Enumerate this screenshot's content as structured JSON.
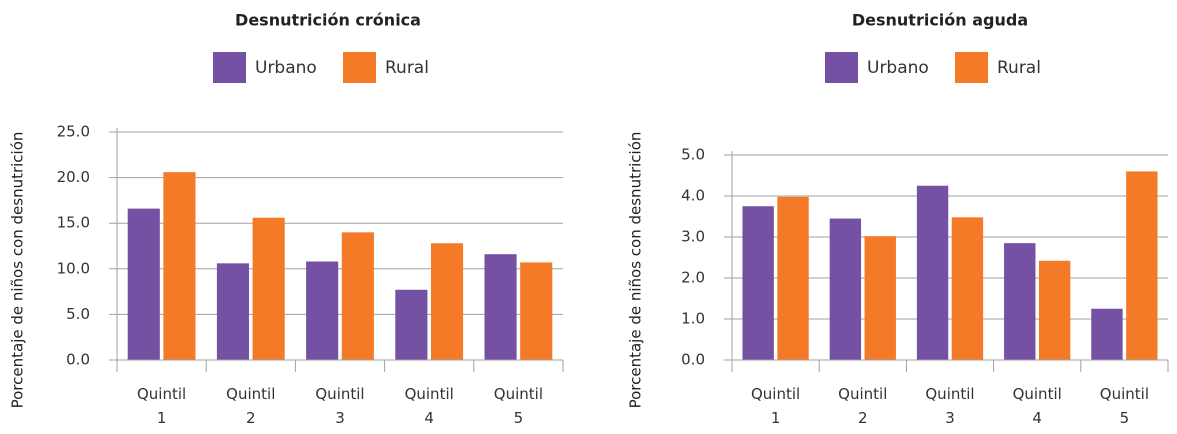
{
  "chart_data": [
    {
      "type": "bar",
      "title": "Desnutrición crónica",
      "y_label": "Porcentaje de niños con desnutrición",
      "categories": [
        "Quintil 1",
        "Quintil 2",
        "Quintil 3",
        "Quintil 4",
        "Quintil 5"
      ],
      "series": [
        {
          "name": "Urbano",
          "color": "#7451a3",
          "values": [
            16.6,
            10.6,
            10.8,
            7.7,
            11.6
          ]
        },
        {
          "name": "Rural",
          "color": "#f47a28",
          "values": [
            20.6,
            15.6,
            14.0,
            12.8,
            10.7
          ]
        }
      ],
      "ylim": [
        0,
        25
      ],
      "yticks": [
        {
          "value": 0,
          "label": "0.0"
        },
        {
          "value": 5,
          "label": "5.0"
        },
        {
          "value": 10,
          "label": "10.0"
        },
        {
          "value": 15,
          "label": "15.0"
        },
        {
          "value": 20,
          "label": "20.0"
        },
        {
          "value": 25,
          "label": "25.0"
        }
      ],
      "grid": true,
      "legend": "top"
    },
    {
      "type": "bar",
      "title": "Desnutrición aguda",
      "y_label": "Porcentaje de niños con desnutrición",
      "categories": [
        "Quintil 1",
        "Quintil 2",
        "Quintil 3",
        "Quintil 4",
        "Quintil 5"
      ],
      "series": [
        {
          "name": "Urbano",
          "color": "#7451a3",
          "values": [
            3.75,
            3.45,
            4.25,
            2.85,
            1.25
          ]
        },
        {
          "name": "Rural",
          "color": "#f47a28",
          "values": [
            3.98,
            3.02,
            3.48,
            2.42,
            4.6
          ]
        }
      ],
      "ylim": [
        0,
        5
      ],
      "yticks": [
        {
          "value": 0,
          "label": "0.0"
        },
        {
          "value": 1,
          "label": "1.0"
        },
        {
          "value": 2,
          "label": "2.0"
        },
        {
          "value": 3,
          "label": "3.0"
        },
        {
          "value": 4,
          "label": "4.0"
        },
        {
          "value": 5,
          "label": "5.0"
        }
      ],
      "grid": true,
      "legend": "top"
    }
  ]
}
